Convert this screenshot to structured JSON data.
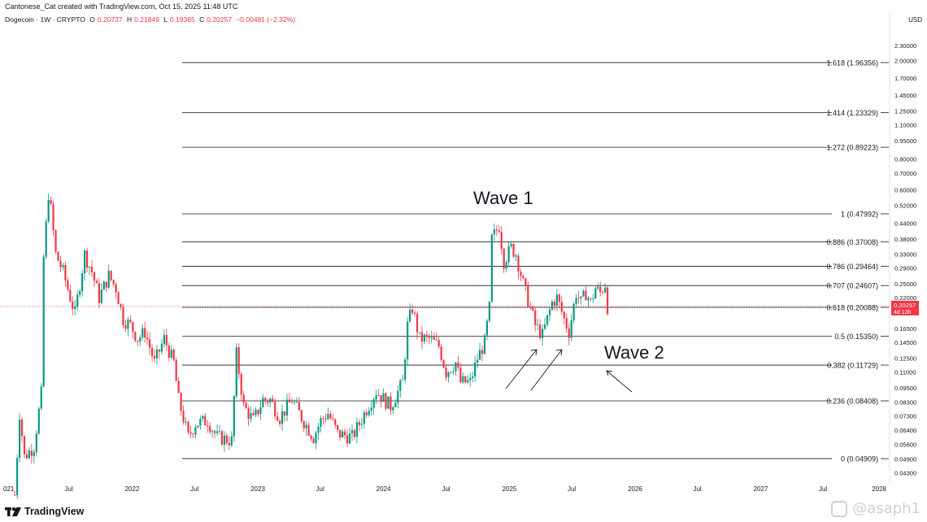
{
  "header": {
    "credit": "Cantonese_Cat created with TradingView.com, Oct 15, 2025 11:48 UTC"
  },
  "symbol_info": {
    "name": "Dogecoin · 1W · CRYPTO",
    "open_label": "O",
    "open": "0.20737",
    "high_label": "H",
    "high": "0.21849",
    "low_label": "L",
    "low": "0.19365",
    "close_label": "C",
    "close": "0.20257",
    "change": "−0.00481 (−2.32%)"
  },
  "currency": "USD",
  "branding": {
    "logo_text": "TradingView",
    "watermark": "@asaph1"
  },
  "colors": {
    "up": "#089981",
    "down": "#f23645",
    "fib_line": "#131722",
    "price_label_bg": "#f23645",
    "price_line": "#f23645"
  },
  "chart_data": {
    "type": "candlestick",
    "scale": "log",
    "ylim": [
      0.038,
      2.9
    ],
    "y_ticks": [
      "2.30000",
      "2.00000",
      "1.70000",
      "1.45000",
      "1.25000",
      "1.10000",
      "0.95000",
      "0.80000",
      "0.70000",
      "0.60000",
      "0.52000",
      "0.44000",
      "0.38000",
      "0.33000",
      "0.29000",
      "0.25000",
      "0.22000",
      "0.19000",
      "0.16500",
      "0.14500",
      "0.12500",
      "0.11000",
      "0.09500",
      "0.08300",
      "0.07300",
      "0.06400",
      "0.05600",
      "0.04900",
      "0.04300"
    ],
    "x_ticks": [
      "021",
      "Jul",
      "2022",
      "Jul",
      "2023",
      "Jul",
      "2024",
      "Jul",
      "2025",
      "Jul",
      "2026",
      "Jul",
      "2027",
      "Jul",
      "2028"
    ],
    "x_range": [
      "2021-01",
      "2028-01"
    ],
    "fib_levels": [
      {
        "label": "1.618 (1.96356)",
        "value": 1.96356
      },
      {
        "label": "1.414 (1.23329)",
        "value": 1.23329
      },
      {
        "label": "1.272 (0.89223)",
        "value": 0.89223
      },
      {
        "label": "1 (0.47992)",
        "value": 0.47992
      },
      {
        "label": "0.886 (0.37008)",
        "value": 0.37008
      },
      {
        "label": "0.786 (0.29464)",
        "value": 0.29464
      },
      {
        "label": "0.707 (0.24607)",
        "value": 0.24607
      },
      {
        "label": "0.618 (0.20088)",
        "value": 0.20088
      },
      {
        "label": "0.5 (0.15350)",
        "value": 0.1535
      },
      {
        "label": "0.382 (0.11729)",
        "value": 0.11729
      },
      {
        "label": "0.236 (0.08408)",
        "value": 0.08408
      },
      {
        "label": "0 (0.04909)",
        "value": 0.04909
      }
    ],
    "current_price": {
      "value": 0.20257,
      "label": "0.20257",
      "countdown": "4d 13h"
    },
    "annotations": [
      "Wave 1",
      "Wave 2"
    ],
    "price_path": [
      [
        "2021-01-25",
        0.035
      ],
      [
        "2021-02-08",
        0.075
      ],
      [
        "2021-02-22",
        0.05
      ],
      [
        "2021-03-22",
        0.055
      ],
      [
        "2021-04-12",
        0.09
      ],
      [
        "2021-04-19",
        0.32
      ],
      [
        "2021-05-03",
        0.58
      ],
      [
        "2021-05-10",
        0.5
      ],
      [
        "2021-05-24",
        0.33
      ],
      [
        "2021-06-14",
        0.28
      ],
      [
        "2021-07-05",
        0.22
      ],
      [
        "2021-07-19",
        0.19
      ],
      [
        "2021-08-16",
        0.33
      ],
      [
        "2021-09-06",
        0.28
      ],
      [
        "2021-09-27",
        0.22
      ],
      [
        "2021-10-25",
        0.27
      ],
      [
        "2021-11-15",
        0.24
      ],
      [
        "2021-12-06",
        0.18
      ],
      [
        "2021-12-27",
        0.17
      ],
      [
        "2022-01-17",
        0.15
      ],
      [
        "2022-02-07",
        0.16
      ],
      [
        "2022-03-07",
        0.12
      ],
      [
        "2022-04-04",
        0.15
      ],
      [
        "2022-05-02",
        0.12
      ],
      [
        "2022-05-16",
        0.085
      ],
      [
        "2022-06-13",
        0.06
      ],
      [
        "2022-07-04",
        0.068
      ],
      [
        "2022-08-08",
        0.07
      ],
      [
        "2022-09-05",
        0.06
      ],
      [
        "2022-10-17",
        0.058
      ],
      [
        "2022-10-31",
        0.13
      ],
      [
        "2022-11-21",
        0.08
      ],
      [
        "2022-12-19",
        0.07
      ],
      [
        "2023-01-16",
        0.085
      ],
      [
        "2023-02-06",
        0.085
      ],
      [
        "2023-03-06",
        0.072
      ],
      [
        "2023-04-10",
        0.085
      ],
      [
        "2023-05-08",
        0.072
      ],
      [
        "2023-06-12",
        0.06
      ],
      [
        "2023-07-03",
        0.07
      ],
      [
        "2023-07-24",
        0.075
      ],
      [
        "2023-08-21",
        0.062
      ],
      [
        "2023-10-02",
        0.06
      ],
      [
        "2023-10-23",
        0.068
      ],
      [
        "2023-11-13",
        0.078
      ],
      [
        "2023-12-11",
        0.092
      ],
      [
        "2024-01-22",
        0.08
      ],
      [
        "2024-02-26",
        0.1
      ],
      [
        "2024-03-11",
        0.17
      ],
      [
        "2024-03-25",
        0.2
      ],
      [
        "2024-04-15",
        0.15
      ],
      [
        "2024-05-13",
        0.15
      ],
      [
        "2024-06-10",
        0.14
      ],
      [
        "2024-07-01",
        0.11
      ],
      [
        "2024-07-29",
        0.12
      ],
      [
        "2024-08-12",
        0.1
      ],
      [
        "2024-09-09",
        0.1
      ],
      [
        "2024-09-30",
        0.125
      ],
      [
        "2024-10-21",
        0.145
      ],
      [
        "2024-11-04",
        0.2
      ],
      [
        "2024-11-11",
        0.38
      ],
      [
        "2024-12-02",
        0.43
      ],
      [
        "2024-12-16",
        0.31
      ],
      [
        "2025-01-06",
        0.35
      ],
      [
        "2025-01-20",
        0.33
      ],
      [
        "2025-02-10",
        0.25
      ],
      [
        "2025-03-03",
        0.2
      ],
      [
        "2025-03-17",
        0.17
      ],
      [
        "2025-04-07",
        0.155
      ],
      [
        "2025-05-05",
        0.21
      ],
      [
        "2025-05-19",
        0.22
      ],
      [
        "2025-06-09",
        0.18
      ],
      [
        "2025-06-23",
        0.16
      ],
      [
        "2025-07-14",
        0.23
      ],
      [
        "2025-07-28",
        0.21
      ],
      [
        "2025-08-11",
        0.23
      ],
      [
        "2025-08-25",
        0.21
      ],
      [
        "2025-09-08",
        0.24
      ],
      [
        "2025-09-22",
        0.23
      ],
      [
        "2025-10-06",
        0.25
      ],
      [
        "2025-10-13",
        0.2026
      ]
    ]
  }
}
